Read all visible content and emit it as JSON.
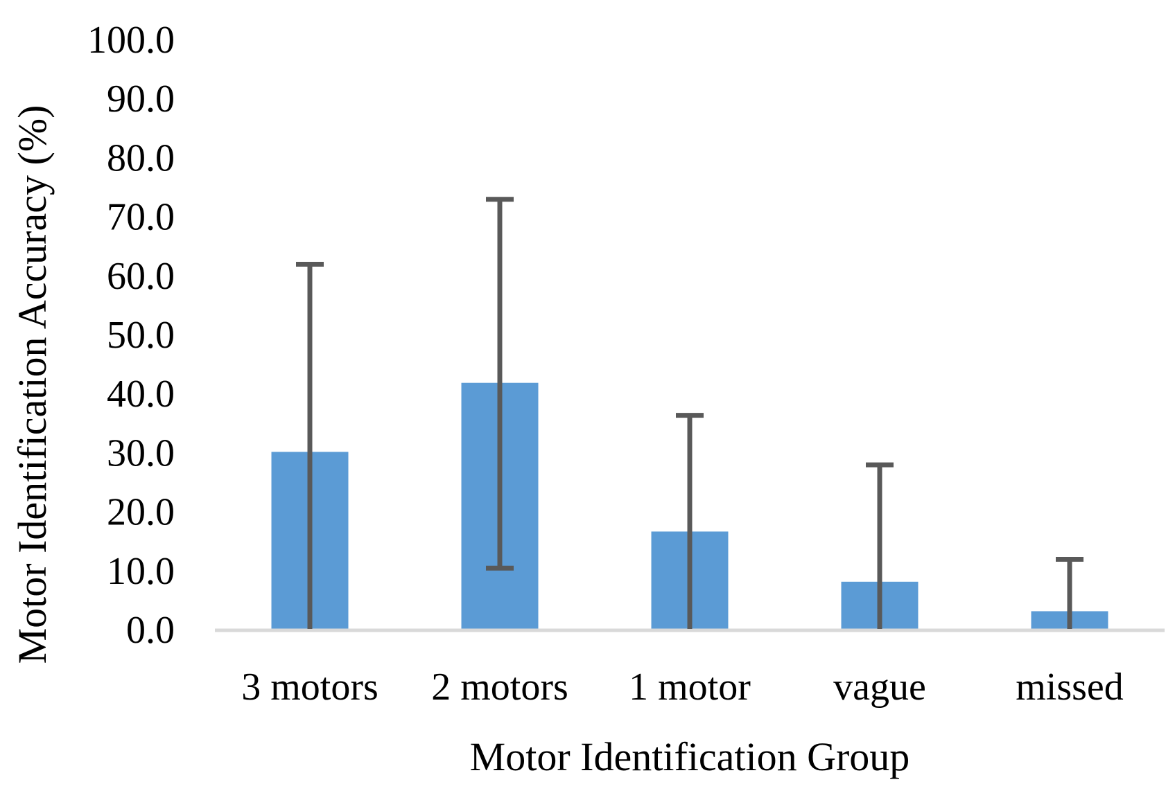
{
  "chart_data": {
    "type": "bar",
    "categories": [
      "3 motors",
      "2 motors",
      "1 motor",
      "vague",
      "missed"
    ],
    "values": [
      30.0,
      41.7,
      16.5,
      8.0,
      3.0
    ],
    "error_upper": [
      61.8,
      72.8,
      36.2,
      27.8,
      11.8
    ],
    "error_lower": [
      0.0,
      10.3,
      0.0,
      0.0,
      0.0
    ],
    "xlabel": "Motor Identification Group",
    "ylabel": "Motor Identification Accuracy (%)",
    "ylim": [
      0,
      100
    ],
    "yticks": [
      "0.0",
      "10.0",
      "20.0",
      "30.0",
      "40.0",
      "50.0",
      "60.0",
      "70.0",
      "80.0",
      "90.0",
      "100.0"
    ],
    "grid": false,
    "legend": "none",
    "colors": {
      "bar": "#5b9bd5",
      "error_bar": "#595959",
      "axis": "#d9d9d9"
    }
  }
}
